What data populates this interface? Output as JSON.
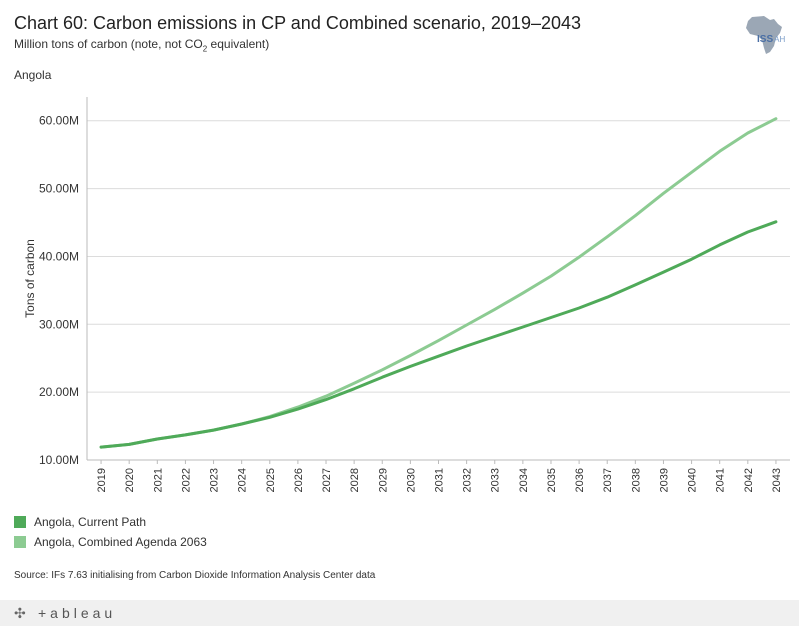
{
  "header": {
    "title": "Chart 60: Carbon emissions in CP and Combined scenario, 2019–2043",
    "subtitle_main": "Million tons of carbon (note, not CO",
    "subtitle_sub": "2",
    "subtitle_end": " equivalent)",
    "country": "Angola"
  },
  "logo": {
    "line1": "ISS",
    "line2": "AH",
    "color": "#9ba7b5"
  },
  "colors": {
    "current_path": "#4faa59",
    "combined": "#8ccb92",
    "grid": "#dcdcdc",
    "axis": "#bbbbbb"
  },
  "chart_data": {
    "type": "line",
    "title": "Chart 60: Carbon emissions in CP and Combined scenario, 2019–2043",
    "ylabel": "Tons of carbon",
    "xlabel": "",
    "ylim": [
      10,
      63.5
    ],
    "y_ticks": [
      10,
      20,
      30,
      40,
      50,
      60
    ],
    "y_tick_labels": [
      "10.00M",
      "20.00M",
      "30.00M",
      "40.00M",
      "50.00M",
      "60.00M"
    ],
    "categories": [
      "2019",
      "2020",
      "2021",
      "2022",
      "2023",
      "2024",
      "2025",
      "2026",
      "2027",
      "2028",
      "2029",
      "2030",
      "2031",
      "2032",
      "2033",
      "2034",
      "2035",
      "2036",
      "2037",
      "2038",
      "2039",
      "2040",
      "2041",
      "2042",
      "2043"
    ],
    "series": [
      {
        "name": "Angola,  Current Path",
        "color": "#4faa59",
        "values": [
          11.9,
          12.3,
          13.1,
          13.7,
          14.4,
          15.3,
          16.3,
          17.5,
          18.9,
          20.5,
          22.2,
          23.8,
          25.3,
          26.8,
          28.2,
          29.6,
          31.0,
          32.4,
          34.0,
          35.8,
          37.7,
          39.6,
          41.7,
          43.6,
          45.1
        ]
      },
      {
        "name": "Angola,  Combined Agenda 2063",
        "color": "#8ccb92",
        "values": [
          11.9,
          12.3,
          13.1,
          13.7,
          14.4,
          15.3,
          16.4,
          17.8,
          19.4,
          21.3,
          23.3,
          25.4,
          27.6,
          29.9,
          32.2,
          34.6,
          37.1,
          39.9,
          42.9,
          46.0,
          49.3,
          52.4,
          55.5,
          58.2,
          60.3
        ]
      }
    ]
  },
  "legend": [
    {
      "label": "Angola,  Current Path",
      "color": "#4faa59"
    },
    {
      "label": "Angola,  Combined Agenda 2063",
      "color": "#8ccb92"
    }
  ],
  "source": "Source: IFs 7.63 initialising from Carbon Dioxide Information Analysis Center data",
  "footer": {
    "brand": "+ableau",
    "mark": "✣"
  }
}
